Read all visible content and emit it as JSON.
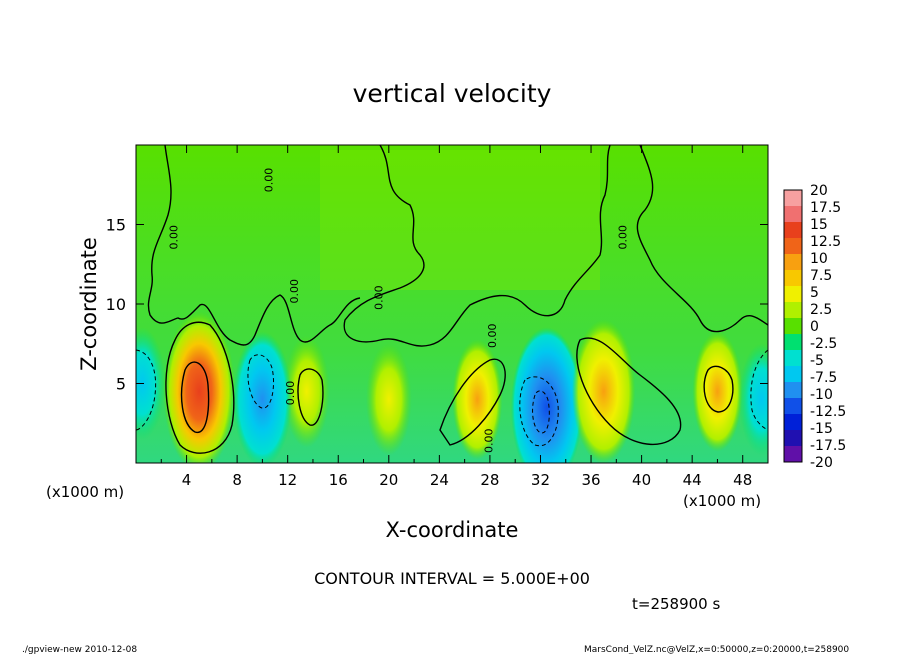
{
  "chart_data": {
    "type": "heatmap",
    "title": "vertical velocity",
    "xlabel": "X-coordinate",
    "ylabel": "Z-coordinate",
    "x_unit_left": "(x1000 m)",
    "x_unit_right": "(x1000 m)",
    "xlim": [
      0,
      50
    ],
    "ylim": [
      0,
      20
    ],
    "x_ticks": [
      4,
      8,
      12,
      16,
      20,
      24,
      28,
      32,
      36,
      40,
      44,
      48
    ],
    "y_ticks": [
      5,
      10,
      15
    ],
    "contour_interval_text": "CONTOUR INTERVAL = 5.000E+00",
    "time_text": "t=258900 s",
    "contour_labels": [
      {
        "x": 3.3,
        "z": 14.2,
        "text": "0.00"
      },
      {
        "x": 12.8,
        "z": 10.8,
        "text": "0.00"
      },
      {
        "x": 10.8,
        "z": 17.8,
        "text": "0.00"
      },
      {
        "x": 19.5,
        "z": 10.4,
        "text": "0.00"
      },
      {
        "x": 12.5,
        "z": 4.4,
        "text": "0.00"
      },
      {
        "x": 28.2,
        "z": 1.4,
        "text": "0.00"
      },
      {
        "x": 28.5,
        "z": 8.0,
        "text": "0.00"
      },
      {
        "x": 38.8,
        "z": 14.2,
        "text": "0.00"
      }
    ],
    "colorbar": {
      "levels": [
        "20",
        "17.5",
        "15",
        "12.5",
        "10",
        "7.5",
        "5",
        "2.5",
        "0",
        "-2.5",
        "-5",
        "-7.5",
        "-10",
        "-12.5",
        "-15",
        "-17.5",
        "-20"
      ],
      "colors": [
        "#f7a0a0",
        "#f07070",
        "#e8401c",
        "#f06418",
        "#f8a010",
        "#f8c800",
        "#f0f000",
        "#b0f000",
        "#58e000",
        "#00e070",
        "#00e0d0",
        "#00c8f0",
        "#2090f0",
        "#1050e8",
        "#0020d8",
        "#2010b0",
        "#6010a8"
      ]
    },
    "features": [
      {
        "x": 5.0,
        "z": 4.5,
        "w": 10,
        "kind": "updraft"
      },
      {
        "x": 13.5,
        "z": 4.5,
        "w": 4,
        "kind": "updraft"
      },
      {
        "x": 10.0,
        "z": 4.0,
        "w": -7,
        "kind": "downdraft"
      },
      {
        "x": 0.5,
        "z": 5.0,
        "w": -4,
        "kind": "downdraft"
      },
      {
        "x": 32.5,
        "z": 3.5,
        "w": -10,
        "kind": "downdraft"
      },
      {
        "x": 37.0,
        "z": 4.5,
        "w": 8,
        "kind": "updraft"
      },
      {
        "x": 27.0,
        "z": 4.0,
        "w": 5,
        "kind": "updraft"
      },
      {
        "x": 20.0,
        "z": 4.0,
        "w": 4,
        "kind": "updraft"
      },
      {
        "x": 46.0,
        "z": 4.5,
        "w": 5,
        "kind": "updraft"
      },
      {
        "x": 49.5,
        "z": 4.0,
        "w": -4,
        "kind": "downdraft"
      }
    ]
  },
  "footer": {
    "program": "./gpview-new  2010-12-08",
    "source": "MarsCond_VelZ.nc@VelZ,x=0:50000,z=0:20000,t=258900"
  }
}
